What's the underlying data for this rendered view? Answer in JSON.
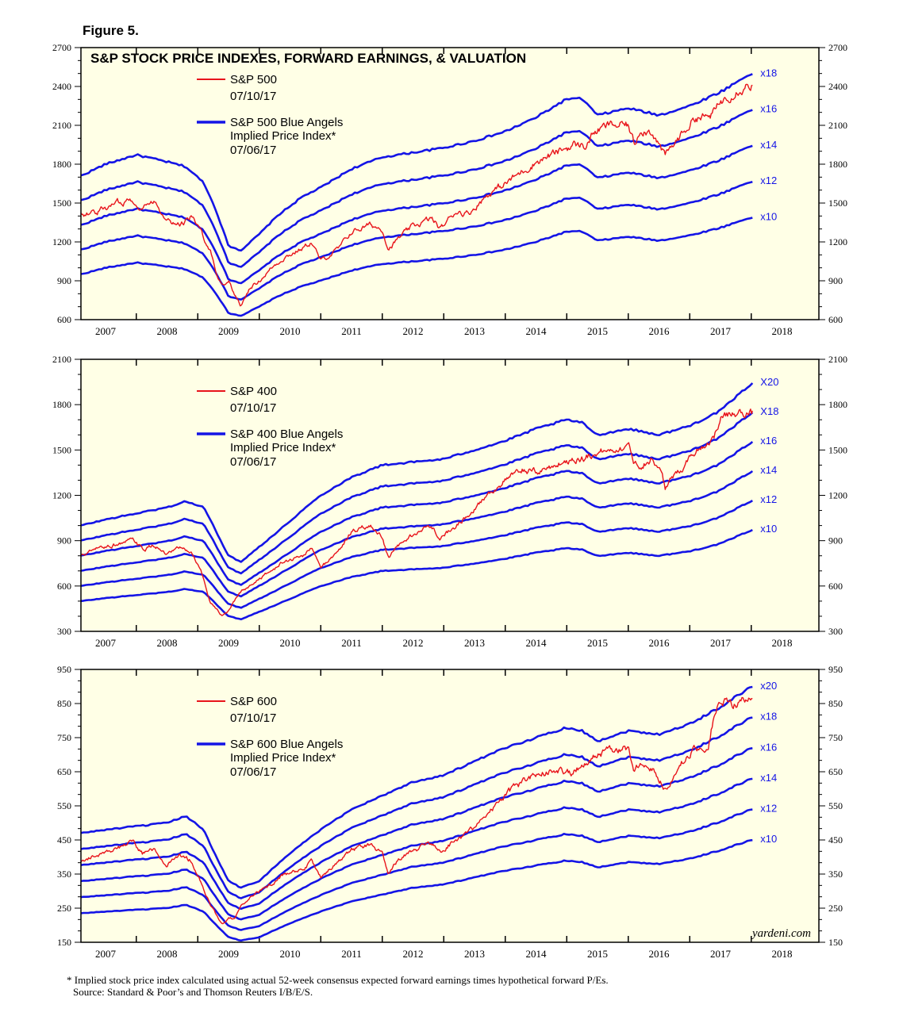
{
  "figure_label": "Figure 5.",
  "colors": {
    "background": "#FFFFE6",
    "price": "#E8141B",
    "angels": "#1414E6",
    "axis": "#000000"
  },
  "chart_data": [
    {
      "type": "line",
      "title": "S&P STOCK PRICE INDEXES, FORWARD EARNINGS, & VALUATION",
      "ylim": [
        600,
        2700
      ],
      "yticks": [
        600,
        900,
        1200,
        1500,
        1800,
        2100,
        2400,
        2700
      ],
      "x_ticks": [
        "2007",
        "2008",
        "2009",
        "2010",
        "2011",
        "2012",
        "2013",
        "2014",
        "2015",
        "2016",
        "2017",
        "2018"
      ],
      "xlim": [
        2006.6,
        2018.6
      ],
      "legend": {
        "price_name": "S&P 500",
        "price_date": "07/10/17",
        "angels_name": "S&P 500 Blue Angels",
        "angels_sub": "Implied Price Index*",
        "angels_date": "07/06/17"
      },
      "multiples": [
        10,
        12,
        14,
        16,
        18
      ],
      "multiple_labels": [
        "x10",
        "x12",
        "x14",
        "x16",
        "x18"
      ],
      "forward_earnings": {
        "x": [
          2006.6,
          2007.0,
          2007.5,
          2008.0,
          2008.3,
          2008.6,
          2008.8,
          2009.0,
          2009.2,
          2009.5,
          2009.8,
          2010.2,
          2010.5,
          2011.0,
          2011.5,
          2012.0,
          2012.5,
          2013.0,
          2013.5,
          2014.0,
          2014.5,
          2014.75,
          2015.0,
          2015.5,
          2016.0,
          2016.5,
          2017.0,
          2017.5
        ],
        "y": [
          95,
          100,
          104,
          101,
          99,
          92,
          80,
          65,
          63,
          70,
          78,
          86,
          90,
          98,
          103,
          105,
          107,
          110,
          114,
          120,
          128,
          128,
          121,
          124,
          121,
          125,
          131,
          139
        ]
      },
      "price": {
        "x": [
          2006.6,
          2006.9,
          2007.2,
          2007.45,
          2007.6,
          2007.8,
          2008.0,
          2008.2,
          2008.4,
          2008.55,
          2008.7,
          2008.8,
          2008.9,
          2009.0,
          2009.1,
          2009.2,
          2009.35,
          2009.5,
          2009.7,
          2009.9,
          2010.2,
          2010.35,
          2010.5,
          2010.8,
          2011.0,
          2011.3,
          2011.5,
          2011.6,
          2011.75,
          2012.0,
          2012.3,
          2012.45,
          2012.7,
          2012.9,
          2013.2,
          2013.5,
          2013.8,
          2014.0,
          2014.3,
          2014.6,
          2014.8,
          2014.95,
          2015.2,
          2015.5,
          2015.6,
          2015.7,
          2015.9,
          2016.05,
          2016.1,
          2016.4,
          2016.6,
          2016.8,
          2016.9,
          2017.0,
          2017.2,
          2017.4,
          2017.52
        ],
        "y": [
          1410,
          1440,
          1500,
          1530,
          1460,
          1520,
          1380,
          1330,
          1400,
          1270,
          1150,
          950,
          870,
          900,
          800,
          700,
          850,
          900,
          1000,
          1080,
          1150,
          1200,
          1050,
          1150,
          1280,
          1330,
          1300,
          1150,
          1220,
          1320,
          1380,
          1300,
          1440,
          1420,
          1560,
          1650,
          1750,
          1820,
          1880,
          1950,
          1940,
          2050,
          2100,
          2100,
          1950,
          2080,
          2050,
          1900,
          1860,
          2050,
          2170,
          2160,
          2200,
          2280,
          2360,
          2410,
          2420
        ]
      }
    },
    {
      "type": "line",
      "title": "",
      "ylim": [
        300,
        2100
      ],
      "yticks": [
        300,
        600,
        900,
        1200,
        1500,
        1800,
        2100
      ],
      "x_ticks": [
        "2007",
        "2008",
        "2009",
        "2010",
        "2011",
        "2012",
        "2013",
        "2014",
        "2015",
        "2016",
        "2017",
        "2018"
      ],
      "xlim": [
        2006.6,
        2018.6
      ],
      "legend": {
        "price_name": "S&P 400",
        "price_date": "07/10/17",
        "angels_name": "S&P 400 Blue Angels",
        "angels_sub": "Implied Price Index*",
        "angels_date": "07/06/17"
      },
      "multiples": [
        10,
        12,
        14,
        16,
        18,
        20
      ],
      "multiple_labels": [
        "x10",
        "x12",
        "x14",
        "x16",
        "X18",
        "X20"
      ],
      "forward_earnings": {
        "x": [
          2006.6,
          2007.0,
          2007.5,
          2008.0,
          2008.3,
          2008.6,
          2008.8,
          2009.0,
          2009.2,
          2009.5,
          2009.8,
          2010.2,
          2010.5,
          2011.0,
          2011.5,
          2012.0,
          2012.5,
          2013.0,
          2013.5,
          2014.0,
          2014.5,
          2014.75,
          2015.0,
          2015.5,
          2016.0,
          2016.5,
          2017.0,
          2017.5
        ],
        "y": [
          50,
          52,
          54,
          56,
          58,
          56,
          48,
          40,
          38,
          43,
          48,
          55,
          60,
          66,
          70,
          71,
          72,
          75,
          78,
          82,
          85,
          84,
          80,
          82,
          80,
          83,
          88,
          97
        ]
      },
      "price": {
        "x": [
          2006.6,
          2006.9,
          2007.2,
          2007.45,
          2007.6,
          2007.8,
          2008.0,
          2008.2,
          2008.4,
          2008.55,
          2008.7,
          2008.8,
          2008.9,
          2009.0,
          2009.1,
          2009.2,
          2009.35,
          2009.5,
          2009.7,
          2009.9,
          2010.2,
          2010.35,
          2010.5,
          2010.8,
          2011.0,
          2011.3,
          2011.5,
          2011.6,
          2011.75,
          2012.0,
          2012.3,
          2012.45,
          2012.7,
          2012.9,
          2013.2,
          2013.5,
          2013.8,
          2014.0,
          2014.3,
          2014.6,
          2014.8,
          2014.95,
          2015.2,
          2015.5,
          2015.6,
          2015.7,
          2015.9,
          2016.05,
          2016.1,
          2016.4,
          2016.6,
          2016.8,
          2016.9,
          2017.0,
          2017.2,
          2017.4,
          2017.52
        ],
        "y": [
          800,
          850,
          880,
          900,
          840,
          870,
          800,
          850,
          820,
          700,
          500,
          450,
          400,
          430,
          500,
          560,
          600,
          650,
          700,
          760,
          800,
          850,
          720,
          840,
          960,
          1000,
          930,
          780,
          860,
          940,
          1000,
          920,
          1000,
          1080,
          1200,
          1300,
          1370,
          1350,
          1400,
          1440,
          1450,
          1480,
          1500,
          1530,
          1420,
          1400,
          1450,
          1330,
          1250,
          1400,
          1500,
          1550,
          1600,
          1700,
          1740,
          1750,
          1740
        ]
      }
    },
    {
      "type": "line",
      "title": "",
      "ylim": [
        150,
        950
      ],
      "yticks": [
        150,
        250,
        350,
        450,
        550,
        650,
        750,
        850,
        950
      ],
      "x_ticks": [
        "2007",
        "2008",
        "2009",
        "2010",
        "2011",
        "2012",
        "2013",
        "2014",
        "2015",
        "2016",
        "2017",
        "2018"
      ],
      "xlim": [
        2006.6,
        2018.6
      ],
      "legend": {
        "price_name": "S&P 600",
        "price_date": "07/10/17",
        "angels_name": "S&P 600 Blue Angels",
        "angels_sub": "Implied Price Index*",
        "angels_date": "07/06/17"
      },
      "multiples": [
        10,
        12,
        14,
        16,
        18,
        20
      ],
      "multiple_labels": [
        "x10",
        "x12",
        "x14",
        "x16",
        "x18",
        "x20"
      ],
      "forward_earnings": {
        "x": [
          2006.6,
          2007.0,
          2007.5,
          2008.0,
          2008.3,
          2008.6,
          2008.8,
          2009.0,
          2009.2,
          2009.5,
          2009.8,
          2010.2,
          2010.5,
          2011.0,
          2011.5,
          2012.0,
          2012.5,
          2013.0,
          2013.5,
          2014.0,
          2014.5,
          2014.75,
          2015.0,
          2015.5,
          2016.0,
          2016.5,
          2017.0,
          2017.5
        ],
        "y": [
          23.5,
          24,
          24.5,
          25,
          26,
          24,
          20,
          16.5,
          15.5,
          16.5,
          19,
          22,
          24,
          27,
          29,
          31,
          32,
          34,
          36,
          37.5,
          39,
          38.5,
          37,
          38.5,
          38,
          39.5,
          42,
          45
        ]
      },
      "price": {
        "x": [
          2006.6,
          2006.9,
          2007.2,
          2007.45,
          2007.6,
          2007.8,
          2008.0,
          2008.2,
          2008.4,
          2008.55,
          2008.7,
          2008.8,
          2008.9,
          2009.0,
          2009.1,
          2009.2,
          2009.35,
          2009.5,
          2009.7,
          2009.9,
          2010.2,
          2010.35,
          2010.5,
          2010.8,
          2011.0,
          2011.3,
          2011.5,
          2011.6,
          2011.75,
          2012.0,
          2012.3,
          2012.45,
          2012.7,
          2012.9,
          2013.2,
          2013.5,
          2013.8,
          2014.0,
          2014.3,
          2014.6,
          2014.8,
          2014.95,
          2015.2,
          2015.5,
          2015.6,
          2015.7,
          2015.9,
          2016.05,
          2016.1,
          2016.4,
          2016.6,
          2016.8,
          2016.9,
          2017.0,
          2017.2,
          2017.4,
          2017.52
        ],
        "y": [
          390,
          410,
          430,
          440,
          410,
          420,
          380,
          400,
          390,
          330,
          260,
          230,
          200,
          220,
          220,
          260,
          280,
          300,
          320,
          350,
          360,
          390,
          340,
          390,
          420,
          440,
          410,
          350,
          390,
          420,
          440,
          420,
          450,
          470,
          520,
          580,
          620,
          640,
          660,
          650,
          680,
          700,
          710,
          720,
          650,
          680,
          660,
          620,
          600,
          680,
          720,
          720,
          820,
          850,
          850,
          860,
          850
        ]
      }
    }
  ],
  "watermark": "yardeni.com",
  "footnote": {
    "line1": "* Implied stock price index calculated using actual 52-week consensus expected forward earnings times hypothetical forward P/Es.",
    "line2": "Source: Standard & Poor’s and Thomson Reuters I/B/E/S."
  }
}
